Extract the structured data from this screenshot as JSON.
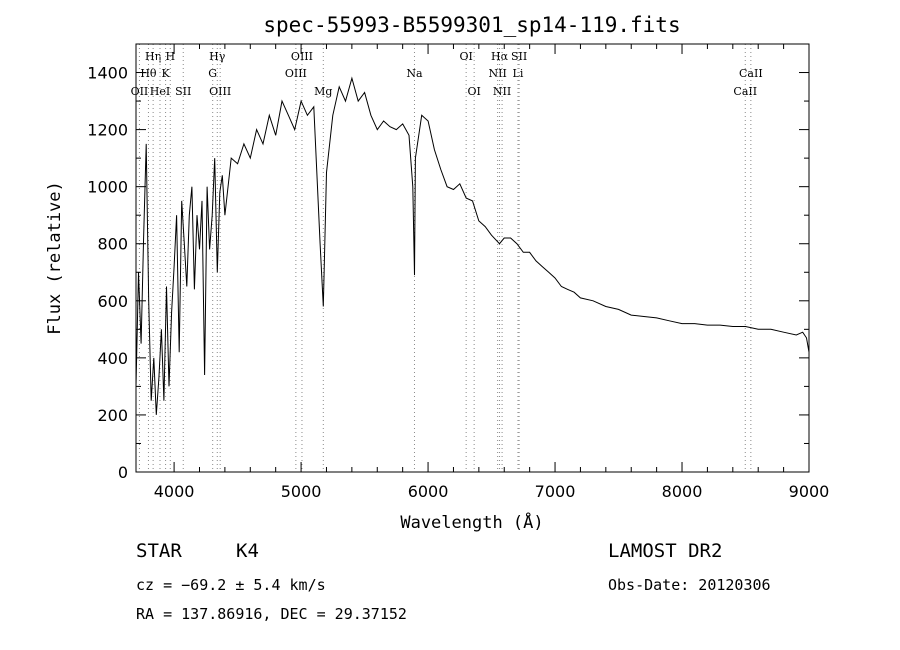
{
  "chart_data": {
    "type": "line",
    "title": "spec-55993-B5599301_sp14-119.fits",
    "xlabel": "Wavelength (Å)",
    "ylabel": "Flux (relative)",
    "xlim": [
      3700,
      9000
    ],
    "ylim": [
      0,
      1500
    ],
    "x_ticks": [
      4000,
      5000,
      6000,
      7000,
      8000,
      9000
    ],
    "y_ticks": [
      0,
      200,
      400,
      600,
      800,
      1000,
      1200,
      1400
    ],
    "grid": false,
    "line_color": "#000000",
    "series": [
      {
        "values": [
          [
            3700,
            300
          ],
          [
            3720,
            700
          ],
          [
            3740,
            450
          ],
          [
            3760,
            820
          ],
          [
            3780,
            1150
          ],
          [
            3800,
            600
          ],
          [
            3820,
            250
          ],
          [
            3840,
            400
          ],
          [
            3860,
            200
          ],
          [
            3880,
            330
          ],
          [
            3900,
            500
          ],
          [
            3920,
            250
          ],
          [
            3940,
            650
          ],
          [
            3960,
            300
          ],
          [
            3980,
            560
          ],
          [
            4000,
            720
          ],
          [
            4020,
            900
          ],
          [
            4040,
            420
          ],
          [
            4060,
            950
          ],
          [
            4080,
            800
          ],
          [
            4100,
            650
          ],
          [
            4120,
            900
          ],
          [
            4140,
            1000
          ],
          [
            4160,
            640
          ],
          [
            4180,
            900
          ],
          [
            4200,
            780
          ],
          [
            4220,
            950
          ],
          [
            4240,
            340
          ],
          [
            4260,
            1000
          ],
          [
            4280,
            780
          ],
          [
            4300,
            900
          ],
          [
            4320,
            1100
          ],
          [
            4340,
            700
          ],
          [
            4360,
            980
          ],
          [
            4380,
            1040
          ],
          [
            4400,
            900
          ],
          [
            4450,
            1100
          ],
          [
            4500,
            1080
          ],
          [
            4550,
            1150
          ],
          [
            4600,
            1100
          ],
          [
            4650,
            1200
          ],
          [
            4700,
            1150
          ],
          [
            4750,
            1250
          ],
          [
            4800,
            1180
          ],
          [
            4850,
            1300
          ],
          [
            4900,
            1250
          ],
          [
            4950,
            1200
          ],
          [
            5000,
            1300
          ],
          [
            5050,
            1250
          ],
          [
            5100,
            1280
          ],
          [
            5150,
            800
          ],
          [
            5175,
            580
          ],
          [
            5200,
            1050
          ],
          [
            5250,
            1250
          ],
          [
            5300,
            1350
          ],
          [
            5350,
            1300
          ],
          [
            5400,
            1380
          ],
          [
            5450,
            1300
          ],
          [
            5500,
            1330
          ],
          [
            5550,
            1250
          ],
          [
            5600,
            1200
          ],
          [
            5650,
            1230
          ],
          [
            5700,
            1210
          ],
          [
            5750,
            1200
          ],
          [
            5800,
            1220
          ],
          [
            5850,
            1180
          ],
          [
            5880,
            1000
          ],
          [
            5893,
            690
          ],
          [
            5900,
            1100
          ],
          [
            5950,
            1250
          ],
          [
            6000,
            1230
          ],
          [
            6050,
            1130
          ],
          [
            6100,
            1060
          ],
          [
            6150,
            1000
          ],
          [
            6200,
            990
          ],
          [
            6250,
            1010
          ],
          [
            6300,
            960
          ],
          [
            6350,
            950
          ],
          [
            6400,
            880
          ],
          [
            6450,
            860
          ],
          [
            6500,
            830
          ],
          [
            6563,
            800
          ],
          [
            6600,
            820
          ],
          [
            6650,
            820
          ],
          [
            6700,
            800
          ],
          [
            6750,
            770
          ],
          [
            6800,
            770
          ],
          [
            6850,
            740
          ],
          [
            6900,
            720
          ],
          [
            6950,
            700
          ],
          [
            7000,
            680
          ],
          [
            7050,
            650
          ],
          [
            7100,
            640
          ],
          [
            7150,
            630
          ],
          [
            7200,
            610
          ],
          [
            7300,
            600
          ],
          [
            7400,
            580
          ],
          [
            7500,
            570
          ],
          [
            7600,
            550
          ],
          [
            7700,
            545
          ],
          [
            7800,
            540
          ],
          [
            7900,
            530
          ],
          [
            8000,
            520
          ],
          [
            8100,
            520
          ],
          [
            8200,
            515
          ],
          [
            8300,
            515
          ],
          [
            8400,
            510
          ],
          [
            8500,
            510
          ],
          [
            8600,
            500
          ],
          [
            8700,
            500
          ],
          [
            8800,
            490
          ],
          [
            8900,
            480
          ],
          [
            8950,
            490
          ],
          [
            8980,
            470
          ],
          [
            9000,
            420
          ]
        ]
      }
    ],
    "line_markers": [
      {
        "wl": 3727,
        "label": "OII",
        "row": 3
      },
      {
        "wl": 3798,
        "label": "Hθ",
        "row": 2
      },
      {
        "wl": 3835,
        "label": "Hη",
        "row": 1
      },
      {
        "wl": 3889,
        "label": "HeI",
        "row": 3
      },
      {
        "wl": 3933,
        "label": "K",
        "row": 2
      },
      {
        "wl": 3970,
        "label": "H",
        "row": 1
      },
      {
        "wl": 4072,
        "label": "SII",
        "row": 3
      },
      {
        "wl": 4304,
        "label": "G",
        "row": 2
      },
      {
        "wl": 4340,
        "label": "Hγ",
        "row": 1
      },
      {
        "wl": 4363,
        "label": "OIII",
        "row": 3
      },
      {
        "wl": 4959,
        "label": "OIII",
        "row": 2
      },
      {
        "wl": 5007,
        "label": "OIII",
        "row": 1
      },
      {
        "wl": 5175,
        "label": "Mg",
        "row": 4
      },
      {
        "wl": 5893,
        "label": "Na",
        "row": 2
      },
      {
        "wl": 6300,
        "label": "OI",
        "row": 1
      },
      {
        "wl": 6363,
        "label": "OI",
        "row": 3
      },
      {
        "wl": 6548,
        "label": "NII",
        "row": 2
      },
      {
        "wl": 6563,
        "label": "Hα",
        "row": 1
      },
      {
        "wl": 6583,
        "label": "NII",
        "row": 3
      },
      {
        "wl": 6708,
        "label": "Li",
        "row": 2
      },
      {
        "wl": 6717,
        "label": "SII",
        "row": 1
      },
      {
        "wl": 8498,
        "label": "CaII",
        "row": 3
      },
      {
        "wl": 8542,
        "label": "CaII",
        "row": 2
      }
    ]
  },
  "info": {
    "class": "STAR",
    "subclass": "K4",
    "survey": "LAMOST DR2",
    "redshift": "cz = −69.2 ± 5.4 km/s",
    "obs_date": "Obs-Date: 20120306",
    "coords": "RA = 137.86916, DEC =  29.37152"
  }
}
